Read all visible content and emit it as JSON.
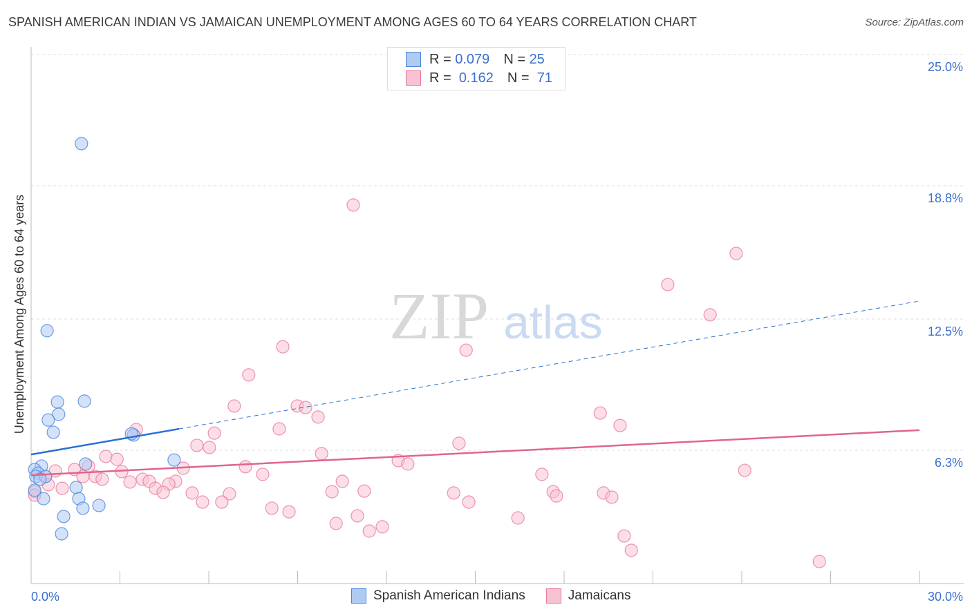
{
  "title": "SPANISH AMERICAN INDIAN VS JAMAICAN UNEMPLOYMENT AMONG AGES 60 TO 64 YEARS CORRELATION CHART",
  "source": "Source: ZipAtlas.com",
  "legend": {
    "r_label": "R =",
    "n_label": "N =",
    "blue": {
      "r": "0.079",
      "n": "25"
    },
    "pink": {
      "r": "0.162",
      "n": "71"
    }
  },
  "colors": {
    "blue": "#4a86d8",
    "blue_fill": "#aecbf2",
    "pink": "#e8799c",
    "pink_fill": "#f7c2d2",
    "blue_line": "#2a6fd4",
    "pink_line": "#e0648f",
    "tick_label": "#3a70d0"
  },
  "chart_data": {
    "type": "scatter",
    "title": "SPANISH AMERICAN INDIAN VS JAMAICAN UNEMPLOYMENT AMONG AGES 60 TO 64 YEARS CORRELATION CHART",
    "xlabel": "",
    "ylabel": "Unemployment Among Ages 60 to 64 years",
    "xlim": [
      0,
      30
    ],
    "ylim": [
      0,
      25
    ],
    "x_tick_labels": [
      "0.0%",
      "30.0%"
    ],
    "y_ticks": [
      6.3,
      12.5,
      18.8,
      25.0
    ],
    "y_tick_labels": [
      "6.3%",
      "12.5%",
      "18.8%",
      "25.0%"
    ],
    "grid": true,
    "legend_position": "top-center",
    "watermark": "ZIPatlas",
    "series": [
      {
        "name": "Spanish American Indians",
        "trend": {
          "x": [
            0,
            5.0,
            30
          ],
          "y": [
            6.1,
            7.31,
            13.35
          ]
        },
        "points": [
          [
            1.7,
            20.79
          ],
          [
            0.54,
            11.95
          ],
          [
            0.89,
            8.58
          ],
          [
            1.8,
            8.62
          ],
          [
            0.93,
            8.0
          ],
          [
            0.58,
            7.73
          ],
          [
            0.75,
            7.15
          ],
          [
            3.46,
            7.02
          ],
          [
            4.83,
            5.84
          ],
          [
            1.84,
            5.65
          ],
          [
            0.35,
            5.55
          ],
          [
            0.12,
            5.39
          ],
          [
            0.23,
            5.22
          ],
          [
            0.16,
            5.06
          ],
          [
            0.49,
            5.06
          ],
          [
            0.3,
            4.93
          ],
          [
            1.52,
            4.54
          ],
          [
            0.12,
            4.41
          ],
          [
            1.61,
            4.01
          ],
          [
            0.42,
            4.01
          ],
          [
            1.75,
            3.56
          ],
          [
            2.29,
            3.69
          ],
          [
            1.1,
            3.17
          ],
          [
            1.03,
            2.35
          ],
          [
            3.39,
            7.08
          ]
        ]
      },
      {
        "name": "Jamaicans",
        "trend": {
          "x": [
            0,
            30
          ],
          "y": [
            5.12,
            7.25
          ]
        },
        "points": [
          [
            10.88,
            17.89
          ],
          [
            23.81,
            15.6
          ],
          [
            21.5,
            14.13
          ],
          [
            22.93,
            12.7
          ],
          [
            8.5,
            11.19
          ],
          [
            14.69,
            11.03
          ],
          [
            7.35,
            9.86
          ],
          [
            6.86,
            8.39
          ],
          [
            8.99,
            8.39
          ],
          [
            9.27,
            8.32
          ],
          [
            9.69,
            7.87
          ],
          [
            19.22,
            8.06
          ],
          [
            19.89,
            7.47
          ],
          [
            3.55,
            7.28
          ],
          [
            8.38,
            7.31
          ],
          [
            6.19,
            7.11
          ],
          [
            5.6,
            6.53
          ],
          [
            6.02,
            6.43
          ],
          [
            14.45,
            6.63
          ],
          [
            2.52,
            6.01
          ],
          [
            2.9,
            5.87
          ],
          [
            9.81,
            6.14
          ],
          [
            12.4,
            5.81
          ],
          [
            12.72,
            5.65
          ],
          [
            1.94,
            5.55
          ],
          [
            1.47,
            5.39
          ],
          [
            0.82,
            5.32
          ],
          [
            7.24,
            5.52
          ],
          [
            3.06,
            5.29
          ],
          [
            5.14,
            5.45
          ],
          [
            24.1,
            5.35
          ],
          [
            0.47,
            5.06
          ],
          [
            2.17,
            5.06
          ],
          [
            1.75,
            5.06
          ],
          [
            2.4,
            4.93
          ],
          [
            3.34,
            4.8
          ],
          [
            3.76,
            4.93
          ],
          [
            3.99,
            4.83
          ],
          [
            4.88,
            4.83
          ],
          [
            7.82,
            5.16
          ],
          [
            10.51,
            4.83
          ],
          [
            17.25,
            5.16
          ],
          [
            4.65,
            4.7
          ],
          [
            4.2,
            4.5
          ],
          [
            1.05,
            4.5
          ],
          [
            0.58,
            4.67
          ],
          [
            0.12,
            4.34
          ],
          [
            4.46,
            4.31
          ],
          [
            5.44,
            4.28
          ],
          [
            6.7,
            4.24
          ],
          [
            10.16,
            4.34
          ],
          [
            11.25,
            4.37
          ],
          [
            17.63,
            4.34
          ],
          [
            17.74,
            4.14
          ],
          [
            19.33,
            4.28
          ],
          [
            19.61,
            4.08
          ],
          [
            14.27,
            4.28
          ],
          [
            5.79,
            3.85
          ],
          [
            6.44,
            3.85
          ],
          [
            14.78,
            3.85
          ],
          [
            8.13,
            3.56
          ],
          [
            8.71,
            3.39
          ],
          [
            11.02,
            3.2
          ],
          [
            10.3,
            2.84
          ],
          [
            16.44,
            3.1
          ],
          [
            11.42,
            2.48
          ],
          [
            11.86,
            2.68
          ],
          [
            20.03,
            2.25
          ],
          [
            20.27,
            1.57
          ],
          [
            26.62,
            1.04
          ],
          [
            0.12,
            4.18
          ]
        ]
      }
    ]
  }
}
